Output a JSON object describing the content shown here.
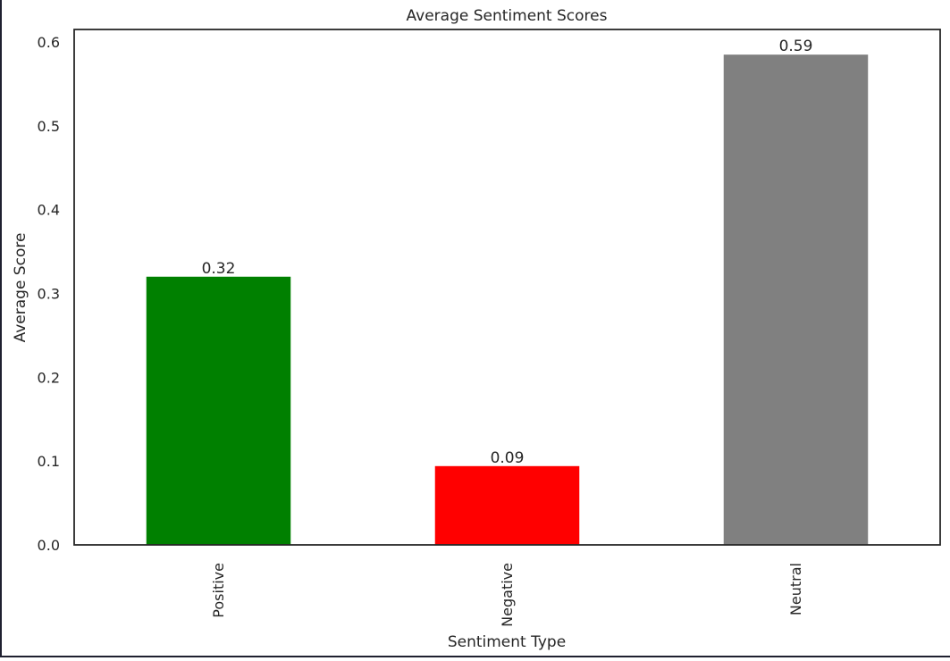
{
  "chart_data": {
    "type": "bar",
    "title": "Average Sentiment Scores",
    "xlabel": "Sentiment Type",
    "ylabel": "Average Score",
    "categories": [
      "Positive",
      "Negative",
      "Neutral"
    ],
    "values": [
      0.32,
      0.094,
      0.585
    ],
    "data_labels": [
      "0.32",
      "0.09",
      "0.59"
    ],
    "colors": [
      "#008000",
      "#ff0000",
      "#808080"
    ],
    "ylim": [
      0,
      0.615
    ],
    "yticks": [
      0.0,
      0.1,
      0.2,
      0.3,
      0.4,
      0.5,
      0.6
    ],
    "ytick_labels": [
      "0.0",
      "0.1",
      "0.2",
      "0.3",
      "0.4",
      "0.5",
      "0.6"
    ],
    "grid": false,
    "xtick_rotation": "vertical"
  }
}
